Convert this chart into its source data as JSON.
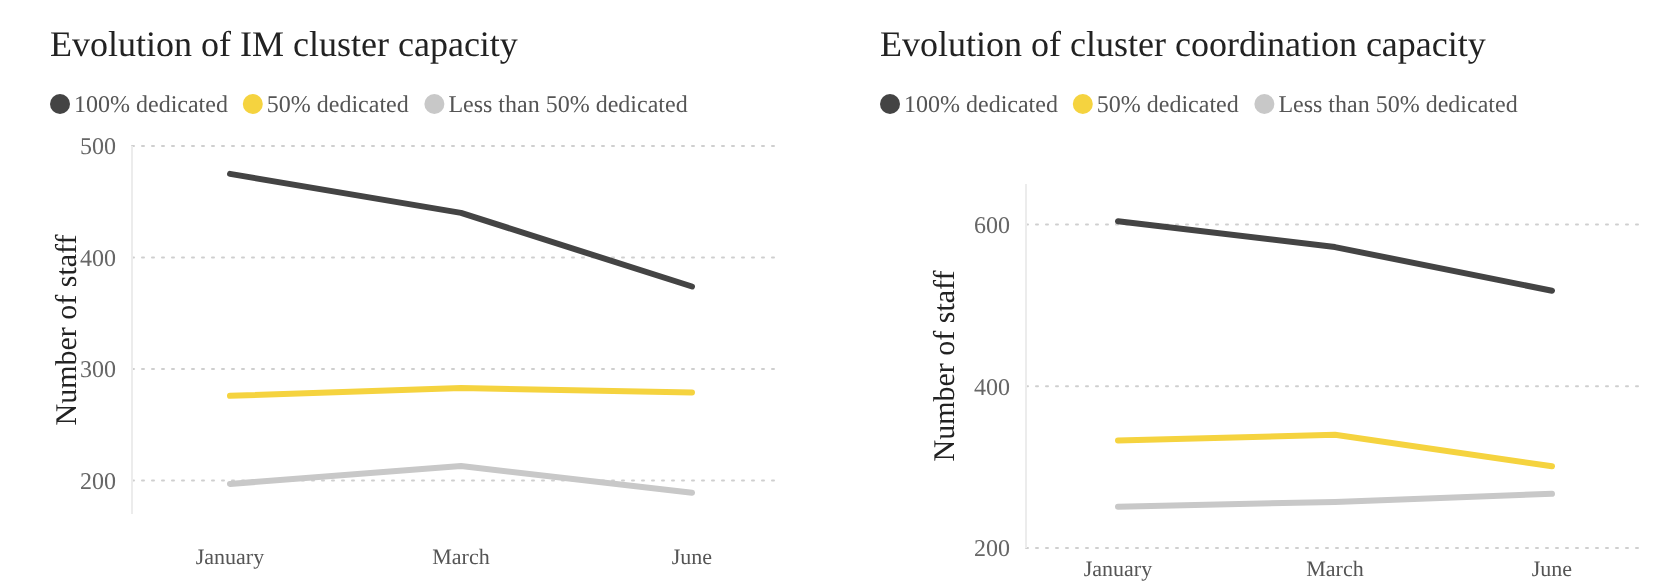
{
  "chart_data": [
    {
      "type": "line",
      "title": "Evolution of IM cluster capacity",
      "ylabel": "Number of staff",
      "categories": [
        "January",
        "March",
        "June"
      ],
      "legend": "top left",
      "grid": "y",
      "ylim": [
        170,
        500
      ],
      "yticks": [
        200,
        300,
        400,
        500
      ],
      "series": [
        {
          "name": "100% dedicated",
          "color": "#444444",
          "values": [
            475,
            440,
            374
          ]
        },
        {
          "name": "50% dedicated",
          "color": "#f5d33f",
          "values": [
            276,
            283,
            279
          ]
        },
        {
          "name": "Less than 50% dedicated",
          "color": "#c8c8c8",
          "values": [
            197,
            213,
            189
          ]
        }
      ]
    },
    {
      "type": "line",
      "title": "Evolution of cluster coordination capacity",
      "ylabel": "Number of staff",
      "categories": [
        "January",
        "March",
        "June"
      ],
      "legend": "top left",
      "grid": "y",
      "ylim": [
        200,
        650
      ],
      "yticks": [
        200,
        400,
        600
      ],
      "series": [
        {
          "name": "100% dedicated",
          "color": "#444444",
          "values": [
            604,
            572,
            518
          ]
        },
        {
          "name": "50% dedicated",
          "color": "#f5d33f",
          "values": [
            333,
            340,
            301
          ]
        },
        {
          "name": "Less than 50% dedicated",
          "color": "#c8c8c8",
          "values": [
            251,
            257,
            267
          ]
        }
      ]
    }
  ]
}
